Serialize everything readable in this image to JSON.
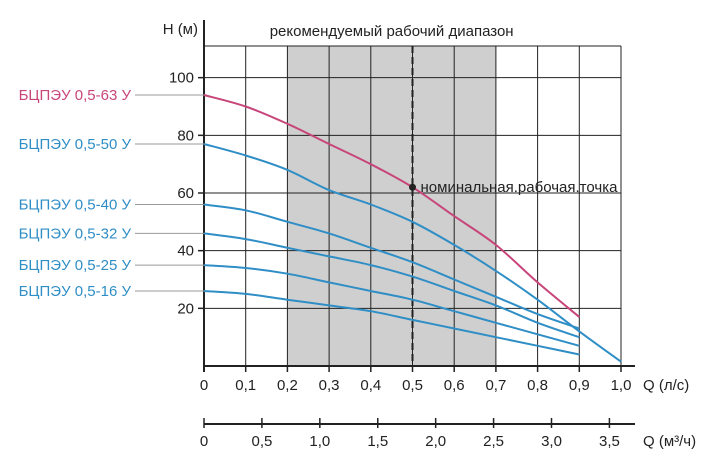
{
  "chart_data": {
    "type": "line",
    "title": "",
    "ylabel": "H (м)",
    "xlabel": "Q (л/с)",
    "xlabel2": "Q (м³/ч)",
    "xlim": [
      0,
      1.0
    ],
    "ylim": [
      0,
      120
    ],
    "y_ticks": [
      {
        "value": 20,
        "label": "20"
      },
      {
        "value": 40,
        "label": "40"
      },
      {
        "value": 60,
        "label": "60"
      },
      {
        "value": 80,
        "label": "80"
      },
      {
        "value": 100,
        "label": "100"
      }
    ],
    "x_ticks": [
      {
        "value": 0,
        "label": "0"
      },
      {
        "value": 0.1,
        "label": "0,1"
      },
      {
        "value": 0.2,
        "label": "0,2"
      },
      {
        "value": 0.3,
        "label": "0,3"
      },
      {
        "value": 0.4,
        "label": "0,4"
      },
      {
        "value": 0.5,
        "label": "0,5"
      },
      {
        "value": 0.6,
        "label": "0,6"
      },
      {
        "value": 0.7,
        "label": "0,7"
      },
      {
        "value": 0.8,
        "label": "0,8"
      },
      {
        "value": 0.9,
        "label": "0,9"
      },
      {
        "value": 1.0,
        "label": "1,0"
      }
    ],
    "x2_ticks": [
      {
        "value": 0,
        "label": "0"
      },
      {
        "value": 0.5,
        "label": "0,5"
      },
      {
        "value": 1.0,
        "label": "1,0"
      },
      {
        "value": 1.5,
        "label": "1,5"
      },
      {
        "value": 2.0,
        "label": "2,0"
      },
      {
        "value": 2.5,
        "label": "2,5"
      },
      {
        "value": 3.0,
        "label": "3,0"
      },
      {
        "value": 3.5,
        "label": "3,5"
      }
    ],
    "x2_per_x": 3.6,
    "grid": true,
    "recommended_range": {
      "label": "рекомендуемый рабочий диапазон",
      "x": [
        0.2,
        0.7
      ]
    },
    "nominal_line": {
      "x": 0.5
    },
    "nominal_point": {
      "label": "номинальная.рабочая.точка",
      "x": 0.5,
      "y": 62
    },
    "series": [
      {
        "name": "БЦПЭУ 0,5-63 У",
        "color": "#c8457a",
        "label_y": 94,
        "x": [
          0,
          0.1,
          0.2,
          0.3,
          0.4,
          0.5,
          0.6,
          0.7,
          0.8,
          0.9
        ],
        "y": [
          94,
          90,
          84,
          77,
          70,
          62,
          52,
          42,
          29,
          17
        ]
      },
      {
        "name": "БЦПЭУ 0,5-50 У",
        "color": "#2f8ec6",
        "label_y": 77,
        "x": [
          0,
          0.1,
          0.2,
          0.3,
          0.4,
          0.5,
          0.6,
          0.7,
          0.8,
          0.9,
          1.0
        ],
        "y": [
          77,
          73,
          68,
          61,
          56,
          50,
          42,
          33,
          23,
          12,
          1.5
        ]
      },
      {
        "name": "БЦПЭУ 0,5-40 У",
        "color": "#2f8ec6",
        "label_y": 56,
        "x": [
          0,
          0.1,
          0.2,
          0.3,
          0.4,
          0.5,
          0.6,
          0.7,
          0.8,
          0.9
        ],
        "y": [
          56,
          54,
          50,
          46,
          41,
          36,
          30,
          24,
          18,
          13
        ]
      },
      {
        "name": "БЦПЭУ 0,5-32 У",
        "color": "#2f8ec6",
        "label_y": 46,
        "x": [
          0,
          0.1,
          0.2,
          0.3,
          0.4,
          0.5,
          0.6,
          0.7,
          0.8,
          0.9
        ],
        "y": [
          46,
          44,
          41,
          38,
          35,
          31,
          26,
          21,
          15,
          10
        ]
      },
      {
        "name": "БЦПЭУ 0,5-25 У",
        "color": "#2f8ec6",
        "label_y": 35,
        "x": [
          0,
          0.1,
          0.2,
          0.3,
          0.4,
          0.5,
          0.6,
          0.7,
          0.8,
          0.9
        ],
        "y": [
          35,
          34,
          32,
          29,
          26,
          23,
          19,
          15,
          11,
          7
        ]
      },
      {
        "name": "БЦПЭУ 0,5-16 У",
        "color": "#2f8ec6",
        "label_y": 26,
        "x": [
          0,
          0.1,
          0.2,
          0.3,
          0.4,
          0.5,
          0.6,
          0.7,
          0.8,
          0.9
        ],
        "y": [
          26,
          25,
          23,
          21,
          19,
          16,
          13,
          10,
          7,
          4
        ]
      }
    ]
  }
}
